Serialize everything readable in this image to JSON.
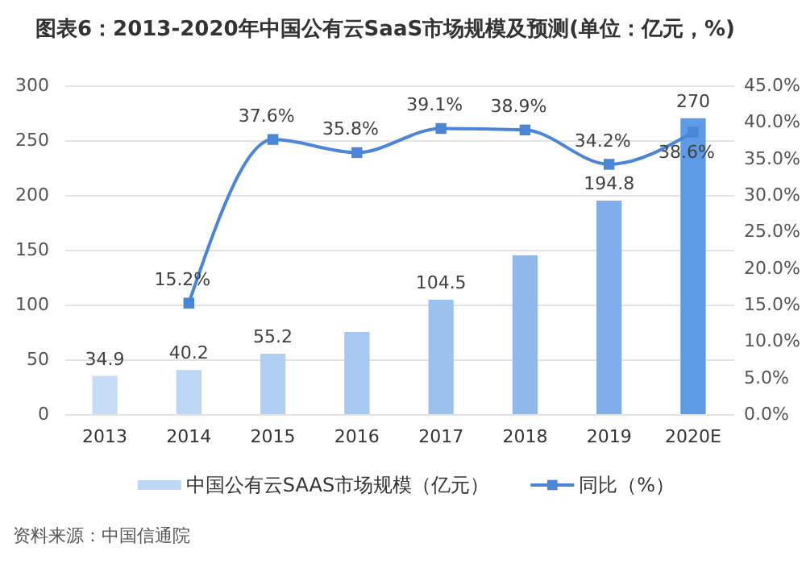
{
  "chart_data": {
    "type": "bar",
    "title": "图表6：2013-2020年中国公有云SaaS市场规模及预测(单位：亿元，%)",
    "categories": [
      "2013",
      "2014",
      "2015",
      "2016",
      "2017",
      "2018",
      "2019",
      "2020E"
    ],
    "series": [
      {
        "name": "中国公有云SAAS市场规模（亿元）",
        "type": "bar",
        "color": "#bdd7f5",
        "colors": [
          "#c6ddf7",
          "#bcd6f5",
          "#b1cff3",
          "#a6c8f1",
          "#9bc1ef",
          "#8fb9ed",
          "#7faeea",
          "#5d9be6"
        ],
        "values": [
          34.9,
          40.2,
          55.2,
          75,
          104.5,
          145,
          194.8,
          270
        ],
        "value_labels": [
          "34.9",
          "40.2",
          "55.2",
          null,
          "104.5",
          null,
          "194.8",
          "270"
        ]
      },
      {
        "name": "同比（%）",
        "type": "line",
        "axis": "y2",
        "color": "#4a86d8",
        "marker": "square",
        "values": [
          null,
          15.2,
          37.6,
          35.8,
          39.1,
          38.9,
          34.2,
          38.6
        ],
        "value_labels": [
          null,
          "15.2%",
          "37.6%",
          "35.8%",
          "39.1%",
          "38.9%",
          "34.2%",
          "38.6%"
        ]
      }
    ],
    "ylim": [
      0,
      300
    ],
    "yticks": [
      0,
      50,
      100,
      150,
      200,
      250,
      300
    ],
    "y2lim": [
      0,
      45
    ],
    "y2ticks": [
      {
        "value": 0,
        "label": "0.0%"
      },
      {
        "value": 5,
        "label": "5.0%"
      },
      {
        "value": 10,
        "label": "10.0%"
      },
      {
        "value": 15,
        "label": "15.0%"
      },
      {
        "value": 20,
        "label": "20.0%"
      },
      {
        "value": 25,
        "label": "25.0%"
      },
      {
        "value": 30,
        "label": "30.0%"
      },
      {
        "value": 35,
        "label": "35.0%"
      },
      {
        "value": 40,
        "label": "40.0%"
      },
      {
        "value": 45,
        "label": "45.0%"
      }
    ],
    "grid": "y",
    "legend": "bottom",
    "annotations": [
      "资料来源：中国信通院"
    ]
  }
}
